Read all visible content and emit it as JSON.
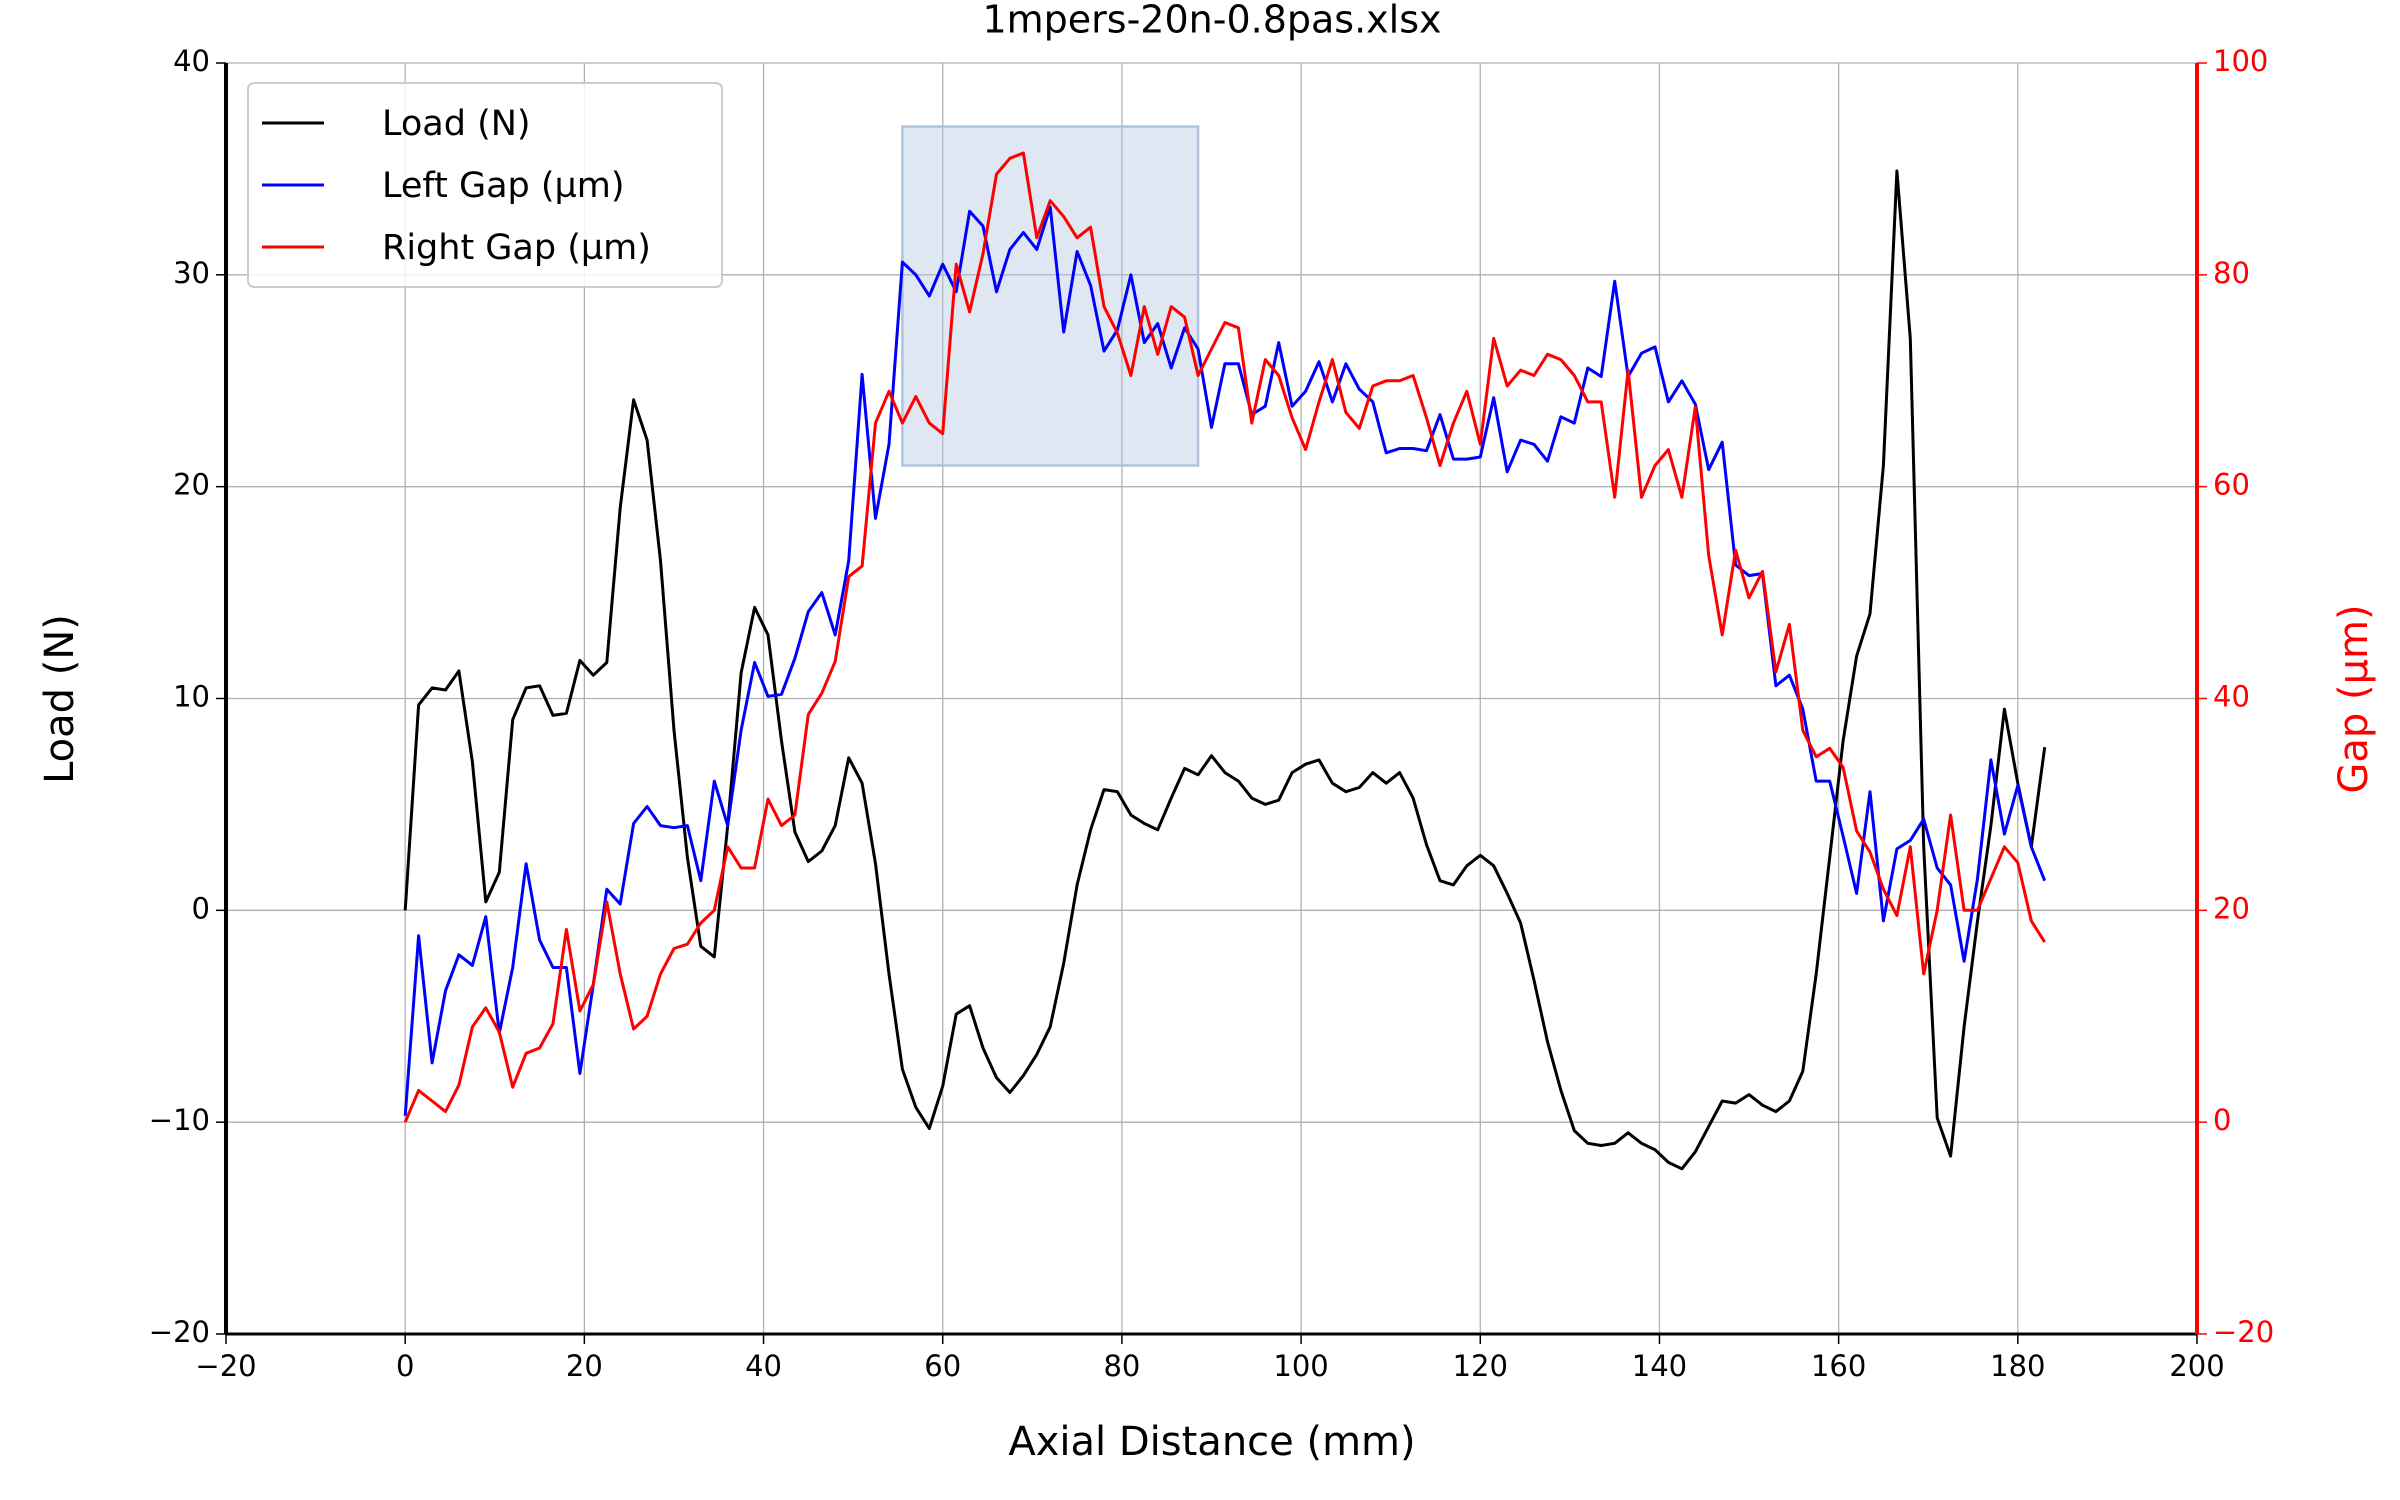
{
  "chart_data": {
    "type": "line",
    "title": "1mpers-20n-0.8pas.xlsx",
    "x_label": "Axial Distance (mm)",
    "y_label": "Load (N)",
    "y2_label": "Gap (µm)",
    "x": [
      0,
      1.5,
      3,
      4.5,
      6,
      7.5,
      9,
      10.5,
      12,
      13.5,
      15,
      16.5,
      18,
      19.5,
      21,
      22.5,
      24,
      25.5,
      27,
      28.5,
      30,
      31.5,
      33,
      34.5,
      36,
      37.5,
      39,
      40.5,
      42,
      43.5,
      45,
      46.5,
      48,
      49.5,
      51,
      52.5,
      54,
      55.5,
      57,
      58.5,
      60,
      61.5,
      63,
      64.5,
      66,
      67.5,
      69,
      70.5,
      72,
      73.5,
      75,
      76.5,
      78,
      79.5,
      81,
      82.5,
      84,
      85.5,
      87,
      88.5,
      90,
      91.5,
      93,
      94.5,
      96,
      97.5,
      99,
      100.5,
      102,
      103.5,
      105,
      106.5,
      108,
      109.5,
      111,
      112.5,
      114,
      115.5,
      117,
      118.5,
      120,
      121.5,
      123,
      124.5,
      126,
      127.5,
      129,
      130.5,
      132,
      133.5,
      135,
      136.5,
      138,
      139.5,
      141,
      142.5,
      144,
      145.5,
      147,
      148.5,
      150,
      151.5,
      153,
      154.5,
      156,
      157.5,
      159,
      160.5,
      162,
      163.5,
      165,
      166.5,
      168,
      169.5,
      171,
      172.5,
      174,
      175.5,
      177,
      178.5,
      180,
      181.5,
      183
    ],
    "series": [
      {
        "name": "Load (N)",
        "color": "#000000",
        "axis": "y",
        "values": [
          0,
          9.7,
          10.5,
          10.4,
          11.3,
          7,
          0.4,
          1.8,
          9,
          10.5,
          10.6,
          9.2,
          9.3,
          11.8,
          11.1,
          11.7,
          19,
          24.1,
          22.2,
          16.5,
          8.5,
          2.5,
          -1.7,
          -2.2,
          4,
          11.2,
          14.3,
          13,
          8,
          3.7,
          2.3,
          2.8,
          4,
          7.2,
          6,
          2.2,
          -3,
          -7.5,
          -9.3,
          -10.3,
          -8.3,
          -4.9,
          -4.5,
          -6.5,
          -7.9,
          -8.6,
          -7.8,
          -6.8,
          -5.5,
          -2.5,
          1.2,
          3.8,
          5.7,
          5.6,
          4.5,
          4.1,
          3.8,
          5.3,
          6.7,
          6.4,
          7.3,
          6.5,
          6.1,
          5.3,
          5,
          5.2,
          6.5,
          6.9,
          7.1,
          6,
          5.6,
          5.8,
          6.5,
          6,
          6.5,
          5.3,
          3.1,
          1.4,
          1.2,
          2.1,
          2.6,
          2.1,
          0.8,
          -0.6,
          -3.3,
          -6.2,
          -8.5,
          -10.4,
          -11,
          -11.1,
          -11,
          -10.5,
          -11,
          -11.3,
          -11.9,
          -12.2,
          -11.4,
          -10.2,
          -9,
          -9.1,
          -8.7,
          -9.2,
          -9.5,
          -9,
          -7.6,
          -3,
          2.5,
          8,
          12,
          14,
          21,
          34.9,
          27,
          3,
          -9.8,
          -11.6,
          -5.5,
          -0.5,
          4,
          9.5,
          6,
          3,
          7.7
        ]
      },
      {
        "name": "Left Gap (µm)",
        "color": "#0000ff",
        "axis": "y2",
        "values": [
          0.6,
          17.6,
          5.6,
          12.4,
          15.8,
          14.8,
          19.4,
          8.4,
          14.6,
          24.4,
          17.2,
          14.6,
          14.6,
          4.6,
          13,
          22,
          20.6,
          28.2,
          29.8,
          28,
          27.8,
          28,
          22.8,
          32.2,
          28,
          37,
          43.4,
          40.2,
          40.4,
          43.8,
          48.2,
          50,
          46,
          53,
          70.6,
          57,
          64,
          81.2,
          80,
          78,
          81,
          78.4,
          86,
          84.6,
          78.4,
          82.4,
          84,
          82.4,
          86.4,
          74.6,
          82.2,
          79,
          72.8,
          74.8,
          80,
          73.6,
          75.4,
          71.2,
          75,
          73,
          65.6,
          71.6,
          71.6,
          66.8,
          67.6,
          73.6,
          67.6,
          69,
          71.8,
          68,
          71.6,
          69.2,
          68,
          63.2,
          63.6,
          63.6,
          63.4,
          66.8,
          62.6,
          62.6,
          62.8,
          68.4,
          61.4,
          64.4,
          64,
          62.4,
          66.6,
          66,
          71.2,
          70.4,
          79.4,
          70.4,
          72.6,
          73.2,
          68,
          70,
          67.8,
          61.6,
          64.2,
          52.6,
          51.6,
          51.8,
          41.2,
          42.2,
          39,
          32.2,
          32.2,
          27,
          21.6,
          31.2,
          19,
          25.8,
          26.6,
          28.6,
          24,
          22.4,
          15.2,
          23,
          34.2,
          27.2,
          31.8,
          26,
          22.8
        ]
      },
      {
        "name": "Right Gap (µm)",
        "color": "#ff0000",
        "axis": "y2",
        "values": [
          0,
          3,
          2,
          1,
          3.5,
          9,
          10.8,
          8.5,
          3.3,
          6.5,
          7,
          9.3,
          18.2,
          10.5,
          13,
          20.8,
          14,
          8.8,
          10,
          14,
          16.4,
          16.8,
          18.8,
          20,
          26,
          24,
          24,
          30.5,
          28,
          29,
          38.5,
          40.5,
          43.5,
          51.5,
          52.5,
          66,
          69,
          66,
          68.5,
          66,
          65,
          81,
          76.5,
          82,
          89.5,
          91,
          91.5,
          83.5,
          87,
          85.5,
          83.5,
          84.5,
          77,
          74.5,
          70.5,
          77,
          72.5,
          77,
          76,
          70.5,
          73,
          75.5,
          75,
          66,
          72,
          70.5,
          66.5,
          63.5,
          68,
          72,
          67,
          65.5,
          69.5,
          70,
          70,
          70.5,
          66.5,
          62,
          66,
          69,
          64,
          74,
          69.5,
          71,
          70.5,
          72.5,
          72,
          70.5,
          68,
          68,
          59,
          71,
          59,
          62,
          63.5,
          59,
          67.5,
          53.5,
          46,
          54,
          49.5,
          52,
          42.5,
          47,
          37,
          34.5,
          35.3,
          33.5,
          27.5,
          25.5,
          22,
          19.5,
          26,
          14,
          20,
          29,
          20,
          20,
          23,
          26,
          24.5,
          19,
          17
        ]
      }
    ],
    "highlight": {
      "x": [
        55.5,
        88.5
      ],
      "y": [
        21,
        37
      ],
      "color": "#b0c4de"
    },
    "xlim": [
      -20,
      200
    ],
    "xticks": [
      {
        "value": -20,
        "label": "−20"
      },
      0,
      20,
      40,
      60,
      80,
      100,
      120,
      140,
      160,
      180,
      200
    ],
    "ylim": [
      -20,
      40
    ],
    "yticks": [
      {
        "value": -20,
        "label": "−20"
      },
      {
        "value": -10,
        "label": "−10"
      },
      0,
      10,
      20,
      30,
      40
    ],
    "y2lim": [
      -20,
      100
    ],
    "y2ticks": [
      {
        "value": -20,
        "label": "−20"
      },
      0,
      20,
      40,
      60,
      80,
      100
    ],
    "y2_color": "#ff0000",
    "grid": true,
    "legend": "upper left"
  }
}
